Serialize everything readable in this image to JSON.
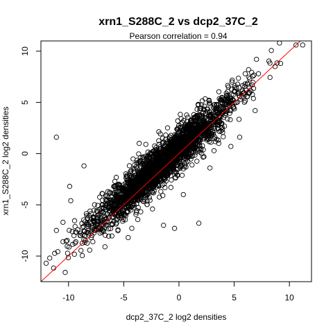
{
  "chart_data": {
    "type": "scatter",
    "title": "xrn1_S288C_2 vs dcp2_37C_2",
    "subtitle": "Pearson correlation =  0.94",
    "xlabel": "dcp2_37C_2 log2 densities",
    "ylabel": "xrn1_S288C_2 log2 densities",
    "xlim": [
      -12.5,
      12
    ],
    "ylim": [
      -12.5,
      11
    ],
    "x_ticks": [
      -10,
      -5,
      0,
      5,
      10
    ],
    "y_ticks": [
      -10,
      -5,
      0,
      5,
      10
    ],
    "x_tick_labels": [
      "-10",
      "-5",
      "0",
      "5",
      "10"
    ],
    "y_tick_labels": [
      "-10",
      "-5",
      "0",
      "5",
      "10"
    ],
    "reference_line": {
      "slope": 1,
      "intercept": 0,
      "color": "#ff0000"
    },
    "marker": "open-circle",
    "marker_color": "#000000",
    "grid": false,
    "point_count_note": "",
    "outliers": [
      {
        "x": 10.6,
        "y": 10.6
      },
      {
        "x": 11.2,
        "y": 10.6
      },
      {
        "x": 9.2,
        "y": 8.8
      },
      {
        "x": 8.7,
        "y": 8.5
      },
      {
        "x": 6.9,
        "y": 4.2
      },
      {
        "x": 5.5,
        "y": 1.6
      },
      {
        "x": 4.7,
        "y": 0.7
      },
      {
        "x": -11.1,
        "y": 1.6
      },
      {
        "x": -8.6,
        "y": -1.2
      },
      {
        "x": -9.9,
        "y": -3.2
      },
      {
        "x": -10.5,
        "y": -8.6
      },
      {
        "x": -11.7,
        "y": -10.2
      },
      {
        "x": -10.3,
        "y": -11.6
      },
      {
        "x": -11.1,
        "y": -7.5
      },
      {
        "x": -10.5,
        "y": -6.7
      },
      {
        "x": -6.7,
        "y": -9.1
      },
      {
        "x": -7.8,
        "y": -8.6
      },
      {
        "x": -4.6,
        "y": -8.2
      },
      {
        "x": -1.4,
        "y": -7.0
      },
      {
        "x": 1.8,
        "y": -6.8
      },
      {
        "x": -0.4,
        "y": -7.3
      },
      {
        "x": 2.8,
        "y": -1.4
      },
      {
        "x": 2.2,
        "y": 1.8
      },
      {
        "x": 3.6,
        "y": 1.0
      },
      {
        "x": -3.0,
        "y": 0.9
      },
      {
        "x": -3.6,
        "y": 1.0
      },
      {
        "x": 6.3,
        "y": 5.9
      },
      {
        "x": 7.2,
        "y": 7.8
      },
      {
        "x": 6.4,
        "y": 7.3
      },
      {
        "x": -9.8,
        "y": -4.6
      },
      {
        "x": -2.4,
        "y": -5.4
      },
      {
        "x": -7.3,
        "y": -6.6
      },
      {
        "x": 0.4,
        "y": -4.0
      }
    ],
    "main_cloud": {
      "description_values": "",
      "x_center": -1.5,
      "spread_along": 3.2,
      "spread_across": 0.75,
      "offset": 0.55
    }
  }
}
